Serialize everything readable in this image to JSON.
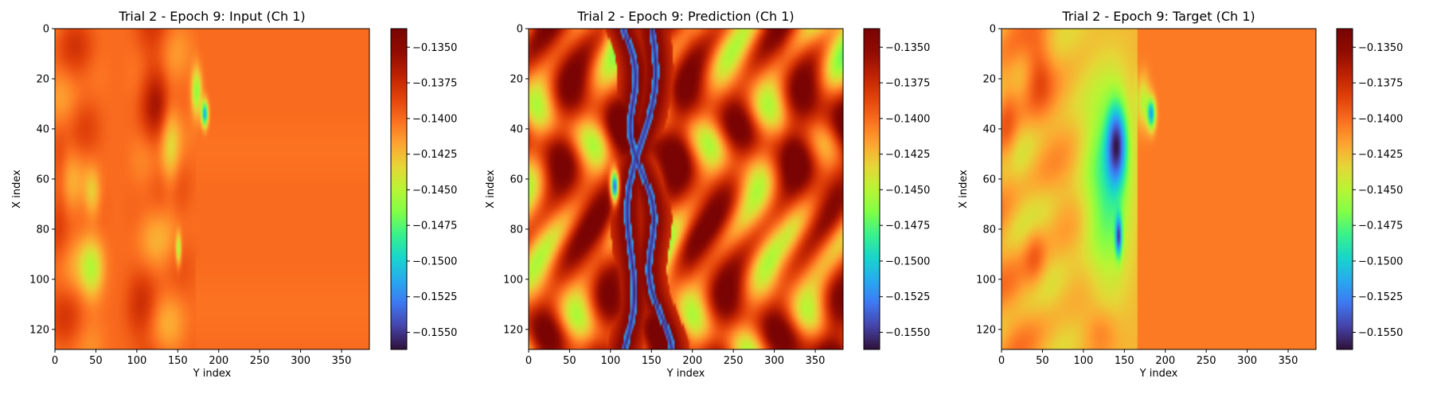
{
  "colors": {
    "colormap": "turbo",
    "background": "#ffffff",
    "axis": "#000000"
  },
  "chart_data": [
    {
      "type": "heatmap",
      "title": "Trial 2 - Epoch 9: Input (Ch 1)",
      "xlabel": "Y index",
      "ylabel": "X index",
      "xlim": [
        0,
        384
      ],
      "ylim": [
        128,
        0
      ],
      "xticks": [
        0,
        50,
        100,
        150,
        200,
        250,
        300,
        350
      ],
      "yticks": [
        0,
        20,
        40,
        60,
        80,
        100,
        120
      ],
      "color_range": [
        -0.1562,
        -0.1337
      ],
      "colorbar_ticks": [
        "-0.1350",
        "-0.1375",
        "-0.1400",
        "-0.1425",
        "-0.1450",
        "-0.1475",
        "-0.1500",
        "-0.1525",
        "-0.1550"
      ],
      "field": "input"
    },
    {
      "type": "heatmap",
      "title": "Trial 2 - Epoch 9: Prediction (Ch 1)",
      "xlabel": "Y index",
      "ylabel": "X index",
      "xlim": [
        0,
        384
      ],
      "ylim": [
        128,
        0
      ],
      "xticks": [
        0,
        50,
        100,
        150,
        200,
        250,
        300,
        350
      ],
      "yticks": [
        0,
        20,
        40,
        60,
        80,
        100,
        120
      ],
      "color_range": [
        -0.1562,
        -0.1337
      ],
      "colorbar_ticks": [
        "-0.1350",
        "-0.1375",
        "-0.1400",
        "-0.1425",
        "-0.1450",
        "-0.1475",
        "-0.1500",
        "-0.1525",
        "-0.1550"
      ],
      "field": "prediction"
    },
    {
      "type": "heatmap",
      "title": "Trial 2 - Epoch 9: Target (Ch 1)",
      "xlabel": "Y index",
      "ylabel": "X index",
      "xlim": [
        0,
        384
      ],
      "ylim": [
        128,
        0
      ],
      "xticks": [
        0,
        50,
        100,
        150,
        200,
        250,
        300,
        350
      ],
      "yticks": [
        0,
        20,
        40,
        60,
        80,
        100,
        120
      ],
      "color_range": [
        -0.1562,
        -0.1337
      ],
      "colorbar_ticks": [
        "-0.1350",
        "-0.1375",
        "-0.1400",
        "-0.1425",
        "-0.1450",
        "-0.1475",
        "-0.1500",
        "-0.1525",
        "-0.1550"
      ],
      "field": "target"
    }
  ]
}
